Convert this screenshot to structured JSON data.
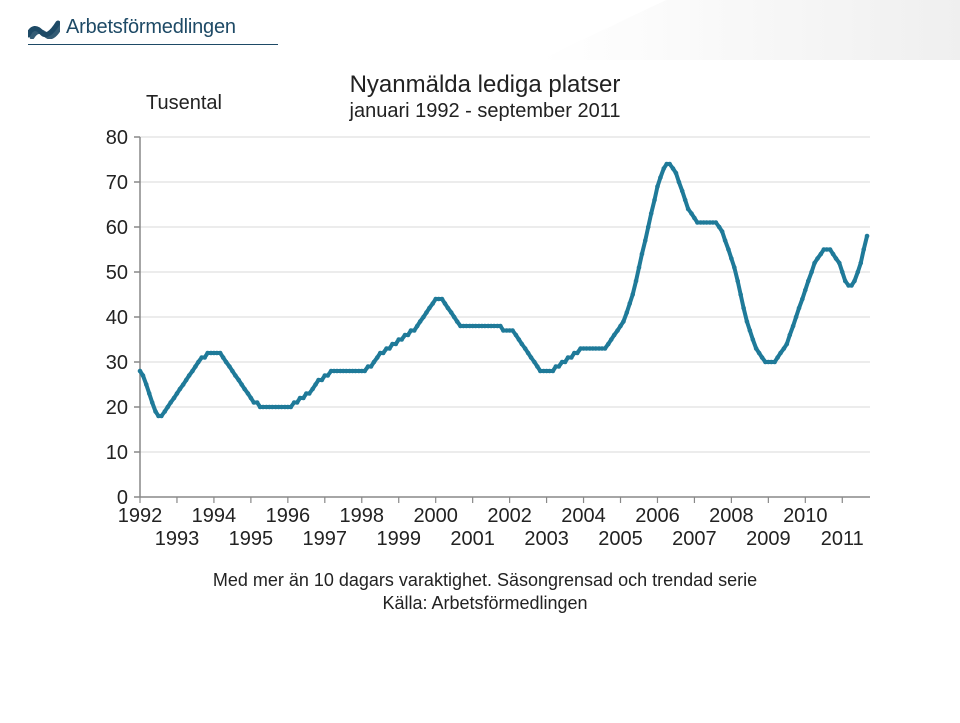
{
  "brand": {
    "word": "Arbetsförmedlingen",
    "word_color": "#1e4a66",
    "logo_color": "#1e4a66"
  },
  "chart": {
    "type": "line",
    "title": "Nyanmälda lediga platser",
    "subtitle": "januari 1992 - september 2011",
    "y_axis_unit_label": "Tusental",
    "title_fontsize": 24,
    "subtitle_fontsize": 20,
    "label_fontsize": 20,
    "tick_fontsize": 20,
    "background_color": "#ffffff",
    "grid_color": "#d9d9d9",
    "axis_color": "#888888",
    "line_color": "#1f7a99",
    "line_width": 4,
    "marker_color": "#1f7a99",
    "marker_size": 2.3,
    "xlim": [
      1992,
      2011.75
    ],
    "ylim": [
      0,
      80
    ],
    "ytick_step": 10,
    "yticks": [
      0,
      10,
      20,
      30,
      40,
      50,
      60,
      70,
      80
    ],
    "xticks_top": [
      1992,
      1994,
      1996,
      1998,
      2000,
      2002,
      2004,
      2006,
      2008,
      2010
    ],
    "xticks_bottom": [
      1993,
      1995,
      1997,
      1999,
      2001,
      2003,
      2005,
      2007,
      2009,
      2011
    ],
    "series": {
      "x": [
        1992.0,
        1992.08,
        1992.17,
        1992.25,
        1992.33,
        1992.42,
        1992.5,
        1992.58,
        1992.67,
        1992.75,
        1992.83,
        1992.92,
        1993.0,
        1993.08,
        1993.17,
        1993.25,
        1993.33,
        1993.42,
        1993.5,
        1993.58,
        1993.67,
        1993.75,
        1993.83,
        1993.92,
        1994.0,
        1994.08,
        1994.17,
        1994.25,
        1994.33,
        1994.42,
        1994.5,
        1994.58,
        1994.67,
        1994.75,
        1994.83,
        1994.92,
        1995.0,
        1995.08,
        1995.17,
        1995.25,
        1995.33,
        1995.42,
        1995.5,
        1995.58,
        1995.67,
        1995.75,
        1995.83,
        1995.92,
        1996.0,
        1996.08,
        1996.17,
        1996.25,
        1996.33,
        1996.42,
        1996.5,
        1996.58,
        1996.67,
        1996.75,
        1996.83,
        1996.92,
        1997.0,
        1997.08,
        1997.17,
        1997.25,
        1997.33,
        1997.42,
        1997.5,
        1997.58,
        1997.67,
        1997.75,
        1997.83,
        1997.92,
        1998.0,
        1998.08,
        1998.17,
        1998.25,
        1998.33,
        1998.42,
        1998.5,
        1998.58,
        1998.67,
        1998.75,
        1998.83,
        1998.92,
        1999.0,
        1999.08,
        1999.17,
        1999.25,
        1999.33,
        1999.42,
        1999.5,
        1999.58,
        1999.67,
        1999.75,
        1999.83,
        1999.92,
        2000.0,
        2000.08,
        2000.17,
        2000.25,
        2000.33,
        2000.42,
        2000.5,
        2000.58,
        2000.67,
        2000.75,
        2000.83,
        2000.92,
        2001.0,
        2001.08,
        2001.17,
        2001.25,
        2001.33,
        2001.42,
        2001.5,
        2001.58,
        2001.67,
        2001.75,
        2001.83,
        2001.92,
        2002.0,
        2002.08,
        2002.17,
        2002.25,
        2002.33,
        2002.42,
        2002.5,
        2002.58,
        2002.67,
        2002.75,
        2002.83,
        2002.92,
        2003.0,
        2003.08,
        2003.17,
        2003.25,
        2003.33,
        2003.42,
        2003.5,
        2003.58,
        2003.67,
        2003.75,
        2003.83,
        2003.92,
        2004.0,
        2004.08,
        2004.17,
        2004.25,
        2004.33,
        2004.42,
        2004.5,
        2004.58,
        2004.67,
        2004.75,
        2004.83,
        2004.92,
        2005.0,
        2005.08,
        2005.17,
        2005.25,
        2005.33,
        2005.42,
        2005.5,
        2005.58,
        2005.67,
        2005.75,
        2005.83,
        2005.92,
        2006.0,
        2006.08,
        2006.17,
        2006.25,
        2006.33,
        2006.42,
        2006.5,
        2006.58,
        2006.67,
        2006.75,
        2006.83,
        2006.92,
        2007.0,
        2007.08,
        2007.17,
        2007.25,
        2007.33,
        2007.42,
        2007.5,
        2007.58,
        2007.67,
        2007.75,
        2007.83,
        2007.92,
        2008.0,
        2008.08,
        2008.17,
        2008.25,
        2008.33,
        2008.42,
        2008.5,
        2008.58,
        2008.67,
        2008.75,
        2008.83,
        2008.92,
        2009.0,
        2009.08,
        2009.17,
        2009.25,
        2009.33,
        2009.42,
        2009.5,
        2009.58,
        2009.67,
        2009.75,
        2009.83,
        2009.92,
        2010.0,
        2010.08,
        2010.17,
        2010.25,
        2010.33,
        2010.42,
        2010.5,
        2010.58,
        2010.67,
        2010.75,
        2010.83,
        2010.92,
        2011.0,
        2011.08,
        2011.17,
        2011.25,
        2011.33,
        2011.42,
        2011.5,
        2011.58,
        2011.67
      ],
      "y": [
        28,
        27,
        25,
        23,
        21,
        19,
        18,
        18,
        19,
        20,
        21,
        22,
        23,
        24,
        25,
        26,
        27,
        28,
        29,
        30,
        31,
        31,
        32,
        32,
        32,
        32,
        32,
        31,
        30,
        29,
        28,
        27,
        26,
        25,
        24,
        23,
        22,
        21,
        21,
        20,
        20,
        20,
        20,
        20,
        20,
        20,
        20,
        20,
        20,
        20,
        21,
        21,
        22,
        22,
        23,
        23,
        24,
        25,
        26,
        26,
        27,
        27,
        28,
        28,
        28,
        28,
        28,
        28,
        28,
        28,
        28,
        28,
        28,
        28,
        29,
        29,
        30,
        31,
        32,
        32,
        33,
        33,
        34,
        34,
        35,
        35,
        36,
        36,
        37,
        37,
        38,
        39,
        40,
        41,
        42,
        43,
        44,
        44,
        44,
        43,
        42,
        41,
        40,
        39,
        38,
        38,
        38,
        38,
        38,
        38,
        38,
        38,
        38,
        38,
        38,
        38,
        38,
        38,
        37,
        37,
        37,
        37,
        36,
        35,
        34,
        33,
        32,
        31,
        30,
        29,
        28,
        28,
        28,
        28,
        28,
        29,
        29,
        30,
        30,
        31,
        31,
        32,
        32,
        33,
        33,
        33,
        33,
        33,
        33,
        33,
        33,
        33,
        34,
        35,
        36,
        37,
        38,
        39,
        41,
        43,
        45,
        48,
        51,
        54,
        57,
        60,
        63,
        66,
        69,
        71,
        73,
        74,
        74,
        73,
        72,
        70,
        68,
        66,
        64,
        63,
        62,
        61,
        61,
        61,
        61,
        61,
        61,
        61,
        60,
        59,
        57,
        55,
        53,
        51,
        48,
        45,
        42,
        39,
        37,
        35,
        33,
        32,
        31,
        30,
        30,
        30,
        30,
        31,
        32,
        33,
        34,
        36,
        38,
        40,
        42,
        44,
        46,
        48,
        50,
        52,
        53,
        54,
        55,
        55,
        55,
        54,
        53,
        52,
        50,
        48,
        47,
        47,
        48,
        50,
        52,
        55,
        58
      ]
    },
    "footnote_line1": "Med mer än 10 dagars varaktighet. Säsongrensad och trendad serie",
    "footnote_line2": "Källa: Arbetsförmedlingen"
  }
}
